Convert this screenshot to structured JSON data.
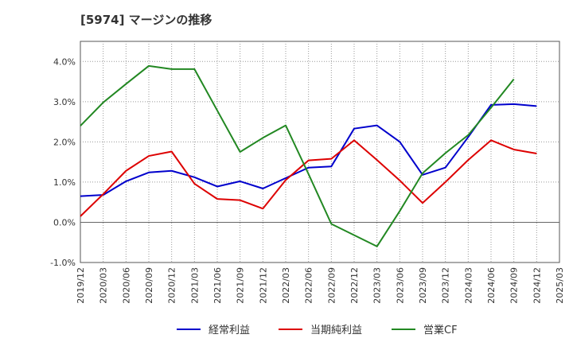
{
  "chart_data": {
    "type": "line",
    "title": "[5974]  マージンの推移",
    "xlabel": "",
    "ylabel": "",
    "x": [
      "2019/12",
      "2020/03",
      "2020/06",
      "2020/09",
      "2020/12",
      "2021/03",
      "2021/06",
      "2021/09",
      "2021/12",
      "2022/03",
      "2022/06",
      "2022/09",
      "2022/12",
      "2023/03",
      "2023/06",
      "2023/09",
      "2023/12",
      "2024/03",
      "2024/06",
      "2024/09",
      "2024/12",
      "2025/03"
    ],
    "ylim": [
      -1.0,
      4.5
    ],
    "yticks": [
      -1.0,
      0.0,
      1.0,
      2.0,
      3.0,
      4.0
    ],
    "ytick_labels": [
      "-1.0%",
      "0.0%",
      "1.0%",
      "2.0%",
      "3.0%",
      "4.0%"
    ],
    "grid": true,
    "legend_position": "bottom",
    "series": [
      {
        "name": "経常利益",
        "color": "#0000cc",
        "values": [
          0.65,
          0.68,
          1.02,
          1.24,
          1.28,
          1.12,
          0.89,
          1.02,
          0.84,
          1.1,
          1.36,
          1.39,
          2.33,
          2.41,
          2.0,
          1.18,
          1.36,
          2.12,
          2.92,
          2.94,
          2.89,
          null
        ]
      },
      {
        "name": "当期純利益",
        "color": "#dd0000",
        "values": [
          0.15,
          0.7,
          1.28,
          1.65,
          1.76,
          0.96,
          0.58,
          0.55,
          0.34,
          1.05,
          1.54,
          1.58,
          2.04,
          1.55,
          1.04,
          0.48,
          1.0,
          1.55,
          2.04,
          1.81,
          1.71,
          null
        ]
      },
      {
        "name": "営業CF",
        "color": "#228822",
        "values": [
          2.4,
          2.98,
          3.44,
          3.89,
          3.81,
          3.81,
          2.78,
          1.75,
          2.1,
          2.41,
          1.2,
          -0.04,
          -0.32,
          -0.6,
          0.28,
          1.22,
          1.72,
          2.17,
          2.85,
          3.56,
          null,
          null
        ]
      }
    ]
  }
}
